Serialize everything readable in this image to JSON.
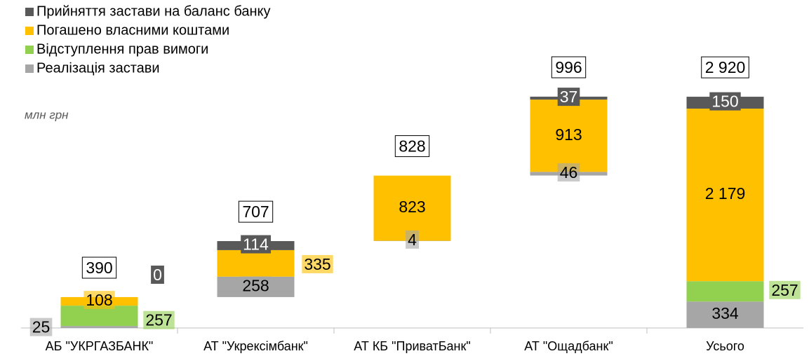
{
  "chart_data": {
    "type": "waterfall",
    "unit_label": "млн грн",
    "categories": [
      "АБ \"УКРГАЗБАНК\"",
      "АТ \"Укрексімбанк\"",
      "АТ КБ \"ПриватБанк\"",
      "АТ \"Ощадбанк\"",
      "Усього"
    ],
    "is_sum": [
      false,
      false,
      false,
      false,
      true
    ],
    "series": [
      {
        "name": "Реалізація застави",
        "color": "#a6a6a6",
        "values": [
          25,
          258,
          4,
          46,
          334
        ]
      },
      {
        "name": "Відступлення прав вимоги",
        "color": "#92d050",
        "values": [
          257,
          null,
          null,
          null,
          257
        ]
      },
      {
        "name": "Погашено власними коштами",
        "color": "#ffc000",
        "values": [
          108,
          335,
          823,
          913,
          2179
        ],
        "value_labels": [
          "108",
          "335",
          "823",
          "913",
          "2 179"
        ]
      },
      {
        "name": "Прийняття застави на баланс банку",
        "color": "#595959",
        "values": [
          0,
          114,
          null,
          37,
          150
        ]
      }
    ],
    "totals": [
      390,
      707,
      828,
      996,
      2920
    ],
    "total_labels": [
      "390",
      "707",
      "828",
      "996",
      "2 920"
    ]
  }
}
